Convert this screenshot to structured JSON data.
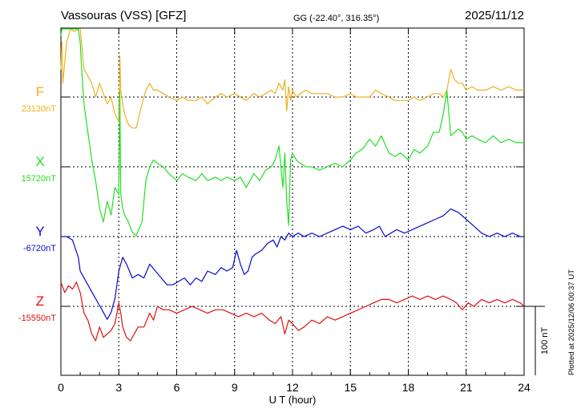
{
  "title": {
    "station": "Vassouras (VSS)  [GFZ]",
    "coords": "GG (-22.40°, 316.35°)",
    "date": "2025/11/12"
  },
  "side_note": "Plotted at 2025/12/06 00:37 UT",
  "scale_label": "100 nT",
  "chart_data": {
    "type": "line",
    "xlabel": "U T (hour)",
    "xlim": [
      0,
      24
    ],
    "xticks": [
      "0",
      "3",
      "6",
      "9",
      "12",
      "15",
      "18",
      "21",
      "24"
    ],
    "scale_bar_nT": 100,
    "colors": {
      "F": "#f0b020",
      "X": "#22e022",
      "Y": "#0a0ad0",
      "Z": "#e01010"
    },
    "series": [
      {
        "name": "F",
        "baseline_label": "23130nT",
        "x": [
          0,
          0.05,
          0.1,
          0.3,
          0.5,
          0.7,
          0.9,
          1.0,
          1.1,
          1.2,
          1.4,
          1.6,
          1.8,
          2.0,
          2.2,
          2.4,
          2.6,
          2.8,
          3.0,
          3.05,
          3.1,
          3.2,
          3.3,
          3.5,
          3.7,
          3.9,
          4.2,
          4.4,
          4.6,
          4.8,
          5.0,
          5.3,
          5.6,
          6.0,
          6.3,
          6.6,
          7.0,
          7.3,
          7.6,
          8.0,
          8.3,
          8.6,
          9.0,
          9.3,
          9.6,
          10.0,
          10.3,
          10.6,
          10.9,
          11.1,
          11.3,
          11.5,
          11.6,
          11.7,
          11.8,
          11.9,
          12.0,
          12.2,
          12.4,
          12.7,
          13.0,
          13.4,
          13.8,
          14.2,
          14.6,
          15.0,
          15.3,
          15.6,
          16.0,
          16.3,
          16.6,
          17.0,
          17.3,
          17.6,
          18.0,
          18.3,
          18.6,
          19.0,
          19.3,
          19.6,
          19.8,
          20.0,
          20.2,
          20.4,
          20.6,
          20.8,
          21.0,
          21.3,
          21.6,
          22.0,
          22.4,
          22.8,
          23.2,
          23.6,
          24.0
        ],
        "y": [
          40,
          80,
          20,
          80,
          100,
          95,
          115,
          100,
          70,
          40,
          30,
          20,
          0,
          20,
          5,
          -10,
          0,
          -25,
          -35,
          60,
          10,
          -10,
          -25,
          -40,
          -45,
          -45,
          -10,
          10,
          20,
          10,
          10,
          5,
          0,
          -5,
          0,
          -5,
          -5,
          0,
          -10,
          0,
          5,
          0,
          5,
          0,
          -5,
          5,
          0,
          5,
          10,
          5,
          20,
          10,
          25,
          -20,
          15,
          -5,
          10,
          0,
          5,
          10,
          5,
          5,
          5,
          0,
          0,
          5,
          0,
          0,
          0,
          10,
          5,
          0,
          -5,
          -5,
          -5,
          0,
          -5,
          0,
          5,
          5,
          0,
          10,
          40,
          25,
          20,
          20,
          10,
          15,
          10,
          10,
          15,
          10,
          15,
          10,
          10
        ]
      },
      {
        "name": "X",
        "baseline_label": "15720nT",
        "x": [
          0,
          0.05,
          0.1,
          0.3,
          0.5,
          0.7,
          0.9,
          1.0,
          1.1,
          1.2,
          1.4,
          1.6,
          1.8,
          2.0,
          2.2,
          2.4,
          2.6,
          2.8,
          3.0,
          3.05,
          3.1,
          3.2,
          3.3,
          3.5,
          3.7,
          3.9,
          4.2,
          4.4,
          4.6,
          4.8,
          5.0,
          5.3,
          5.6,
          6.0,
          6.3,
          6.6,
          7.0,
          7.3,
          7.6,
          8.0,
          8.3,
          8.6,
          9.0,
          9.3,
          9.6,
          10.0,
          10.3,
          10.6,
          10.9,
          11.1,
          11.3,
          11.5,
          11.6,
          11.7,
          11.8,
          11.9,
          12.0,
          12.2,
          12.4,
          12.7,
          13.0,
          13.4,
          13.8,
          14.2,
          14.6,
          15.0,
          15.3,
          15.6,
          16.0,
          16.3,
          16.6,
          17.0,
          17.3,
          17.6,
          18.0,
          18.3,
          18.6,
          19.0,
          19.3,
          19.6,
          19.8,
          20.0,
          20.2,
          20.4,
          20.6,
          20.8,
          21.0,
          21.3,
          21.6,
          22.0,
          22.4,
          22.8,
          23.2,
          23.6,
          24.0
        ],
        "y": [
          190,
          230,
          200,
          220,
          240,
          220,
          200,
          180,
          130,
          90,
          50,
          10,
          -20,
          -60,
          -80,
          -50,
          -70,
          -30,
          -40,
          110,
          -40,
          -60,
          -70,
          -80,
          -95,
          -100,
          -80,
          -20,
          0,
          10,
          5,
          0,
          -10,
          -20,
          -10,
          -15,
          -20,
          -10,
          -20,
          -15,
          -20,
          -15,
          -20,
          -15,
          -30,
          -10,
          -20,
          -5,
          0,
          10,
          30,
          -30,
          20,
          -50,
          -85,
          10,
          20,
          10,
          5,
          0,
          0,
          -5,
          0,
          5,
          0,
          10,
          20,
          25,
          40,
          30,
          45,
          20,
          15,
          20,
          10,
          25,
          20,
          30,
          50,
          50,
          75,
          110,
          45,
          50,
          55,
          50,
          40,
          45,
          40,
          35,
          45,
          35,
          40,
          35,
          35
        ]
      },
      {
        "name": "Y",
        "baseline_label": "-6720nT",
        "x": [
          0,
          0.3,
          0.6,
          0.9,
          1.0,
          1.2,
          1.4,
          1.6,
          1.8,
          2.0,
          2.2,
          2.4,
          2.6,
          2.8,
          3.0,
          3.2,
          3.4,
          3.7,
          4.0,
          4.3,
          4.6,
          4.9,
          5.2,
          5.5,
          5.8,
          6.1,
          6.4,
          6.7,
          7.0,
          7.3,
          7.6,
          8.0,
          8.3,
          8.6,
          8.9,
          9.1,
          9.3,
          9.5,
          9.7,
          9.9,
          10.1,
          10.4,
          10.7,
          11.0,
          11.2,
          11.4,
          11.6,
          11.8,
          12.0,
          12.3,
          12.6,
          13.0,
          13.4,
          13.8,
          14.2,
          14.6,
          15.0,
          15.4,
          15.8,
          16.2,
          16.5,
          16.8,
          17.1,
          17.4,
          17.8,
          18.2,
          18.6,
          19.0,
          19.4,
          19.8,
          20.2,
          20.6,
          21.0,
          21.4,
          21.8,
          22.2,
          22.6,
          23.0,
          23.4,
          23.8,
          24.0
        ],
        "y": [
          0,
          0,
          -5,
          -30,
          -50,
          -60,
          -70,
          -80,
          -90,
          -100,
          -110,
          -120,
          -110,
          -90,
          -50,
          -30,
          -40,
          -60,
          -55,
          -60,
          -40,
          -50,
          -60,
          -70,
          -70,
          -65,
          -60,
          -70,
          -60,
          -65,
          -50,
          -55,
          -45,
          -50,
          -45,
          -20,
          -40,
          -55,
          -50,
          -30,
          -25,
          -20,
          -10,
          -5,
          -15,
          0,
          -5,
          5,
          0,
          5,
          0,
          5,
          0,
          5,
          10,
          15,
          10,
          15,
          5,
          10,
          15,
          0,
          5,
          10,
          5,
          10,
          15,
          20,
          25,
          30,
          40,
          35,
          25,
          15,
          5,
          0,
          5,
          0,
          5,
          0,
          0
        ]
      },
      {
        "name": "Z",
        "baseline_label": "-15550nT",
        "x": [
          0,
          0.2,
          0.4,
          0.6,
          0.8,
          1.0,
          1.2,
          1.4,
          1.6,
          1.8,
          2.0,
          2.2,
          2.4,
          2.6,
          2.8,
          3.0,
          3.1,
          3.2,
          3.4,
          3.6,
          3.8,
          4.0,
          4.3,
          4.6,
          4.8,
          5.0,
          5.3,
          5.6,
          6.0,
          6.4,
          6.8,
          7.2,
          7.6,
          8.0,
          8.4,
          8.8,
          9.2,
          9.6,
          10.0,
          10.4,
          10.8,
          11.1,
          11.4,
          11.6,
          11.8,
          12.0,
          12.3,
          12.6,
          13.0,
          13.4,
          13.8,
          14.2,
          14.6,
          15.0,
          15.4,
          15.8,
          16.2,
          16.6,
          17.0,
          17.4,
          17.8,
          18.2,
          18.6,
          19.0,
          19.4,
          19.8,
          20.2,
          20.5,
          20.8,
          21.1,
          21.4,
          21.8,
          22.2,
          22.6,
          23.0,
          23.4,
          23.8,
          24.0
        ],
        "y": [
          35,
          20,
          30,
          25,
          35,
          20,
          -10,
          -20,
          -40,
          -50,
          -30,
          -45,
          -40,
          -35,
          -25,
          5,
          -10,
          -30,
          -45,
          -50,
          -40,
          -30,
          -30,
          -10,
          -20,
          0,
          -5,
          -5,
          -10,
          -5,
          0,
          -5,
          -10,
          -5,
          -5,
          -10,
          -15,
          -10,
          -15,
          -10,
          -20,
          -25,
          -15,
          -40,
          -20,
          -25,
          -35,
          -30,
          -20,
          -25,
          -15,
          -20,
          -15,
          -10,
          -5,
          0,
          5,
          10,
          10,
          5,
          10,
          15,
          10,
          15,
          10,
          15,
          10,
          5,
          -5,
          5,
          0,
          10,
          5,
          10,
          5,
          10,
          5,
          0
        ]
      }
    ]
  }
}
